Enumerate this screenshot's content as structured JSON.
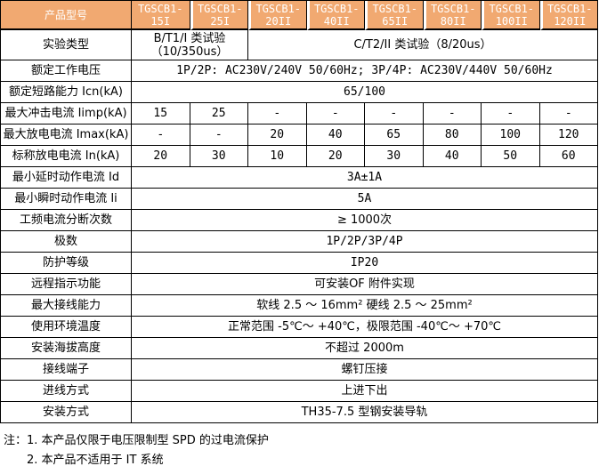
{
  "colors": {
    "header_bg": "#F1A971",
    "header_text": "#FFFFFF",
    "border": "#000000"
  },
  "header": {
    "product_label": "产品型号",
    "models": [
      "TGSCB1-15I",
      "TGSCB1-25I",
      "TGSCB1-20II",
      "TGSCB1-40II",
      "TGSCB1-65II",
      "TGSCB1-80II",
      "TGSCB1-100II",
      "TGSCB1-120II"
    ]
  },
  "rows": {
    "test_type": {
      "label": "实验类型",
      "b_class": "B/T1/I 类试验（10/350us）",
      "c_class": "C/T2/II 类试验（8/20us）"
    },
    "voltage": {
      "label": "额定工作电压",
      "value": "1P/2P: AC230V/240V 50/60Hz; 3P/4P: AC230V/440V 50/60Hz"
    },
    "icn": {
      "label": "额定短路能力 Icn(kA)",
      "value": "65/100"
    },
    "iimp": {
      "label": "最大冲击电流 Iimp(kA)",
      "values": [
        "15",
        "25",
        "-",
        "-",
        "-",
        "-",
        "-",
        "-"
      ]
    },
    "imax": {
      "label": "最大放电电流 Imax(kA)",
      "values": [
        "-",
        "-",
        "20",
        "40",
        "65",
        "80",
        "100",
        "120"
      ]
    },
    "in": {
      "label": "标称放电电流 In(kA)",
      "values": [
        "20",
        "30",
        "10",
        "20",
        "30",
        "40",
        "50",
        "60"
      ]
    },
    "id": {
      "label": "最小延时动作电流 Id",
      "value": "3A±1A"
    },
    "ii": {
      "label": "最小瞬时动作电流 Ii",
      "value": "5A"
    },
    "freq": {
      "label": "工频电流分断次数",
      "value": "≥ 1000次"
    },
    "poles": {
      "label": "极数",
      "value": "1P/2P/3P/4P"
    },
    "ip": {
      "label": "防护等级",
      "value": "IP20"
    },
    "remote": {
      "label": "远程指示功能",
      "value": "可安装OF 附件实现"
    },
    "wire": {
      "label": "最大接线能力",
      "value": "软线 2.5 ～ 16mm² 硬线 2.5 ～ 25mm²"
    },
    "temp": {
      "label": "使用环境温度",
      "value": "正常范围 -5℃～ +40℃，极限范围 -40℃～ +70℃"
    },
    "altitude": {
      "label": "安装海拔高度",
      "value": "不超过 2000m"
    },
    "terminal": {
      "label": "接线端子",
      "value": "螺钉压接"
    },
    "inlet": {
      "label": "进线方式",
      "value": "上进下出"
    },
    "mount": {
      "label": "安装方式",
      "value": "TH35-7.5 型钢安装导轨"
    }
  },
  "notes": {
    "line1": "注：1. 本产品仅限于电压限制型 SPD 的过电流保护",
    "line2": "2. 本产品不适用于 IT 系统"
  }
}
